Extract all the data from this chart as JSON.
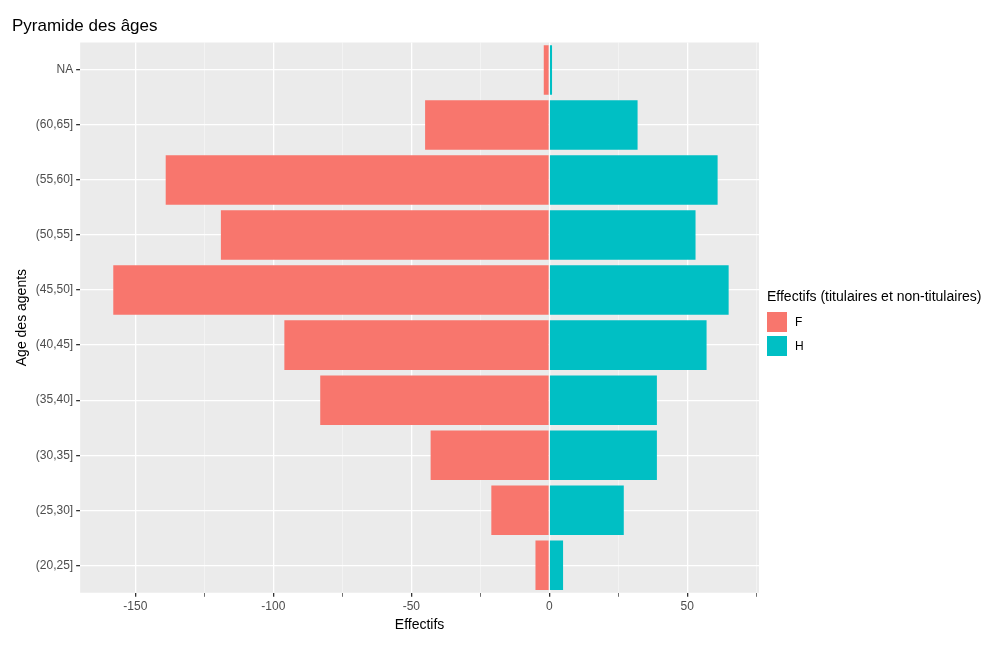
{
  "chart_data": {
    "type": "bar",
    "orientation": "horizontal",
    "stacked": true,
    "title": "Pyramide des âges",
    "xlabel": "Effectifs",
    "ylabel": "Age des agents",
    "legend_title": "Effectifs (titulaires et non-titulaires)",
    "legend": "right",
    "grid": true,
    "categories": [
      "NA",
      "(60,65]",
      "(55,60]",
      "(50,55]",
      "(45,50]",
      "(40,45]",
      "(35,40]",
      "(30,35]",
      "(25,30]",
      "(20,25]"
    ],
    "series": [
      {
        "name": "F",
        "color": "#f8766d",
        "values": [
          -2,
          -45,
          -139,
          -119,
          -158,
          -96,
          -83,
          -43,
          -21,
          -5
        ]
      },
      {
        "name": "H",
        "color": "#00bfc4",
        "values": [
          1,
          32,
          61,
          53,
          65,
          57,
          39,
          39,
          27,
          5
        ]
      }
    ],
    "xlim": [
      -170,
      76
    ],
    "xticks": [
      -150,
      {
        "value": -125,
        "label": null
      },
      -100,
      {
        "value": -75,
        "label": null
      },
      -50,
      {
        "value": -25,
        "label": null
      },
      0,
      {
        "value": 25,
        "label": null
      },
      50,
      {
        "value": 75,
        "label": null
      }
    ]
  }
}
